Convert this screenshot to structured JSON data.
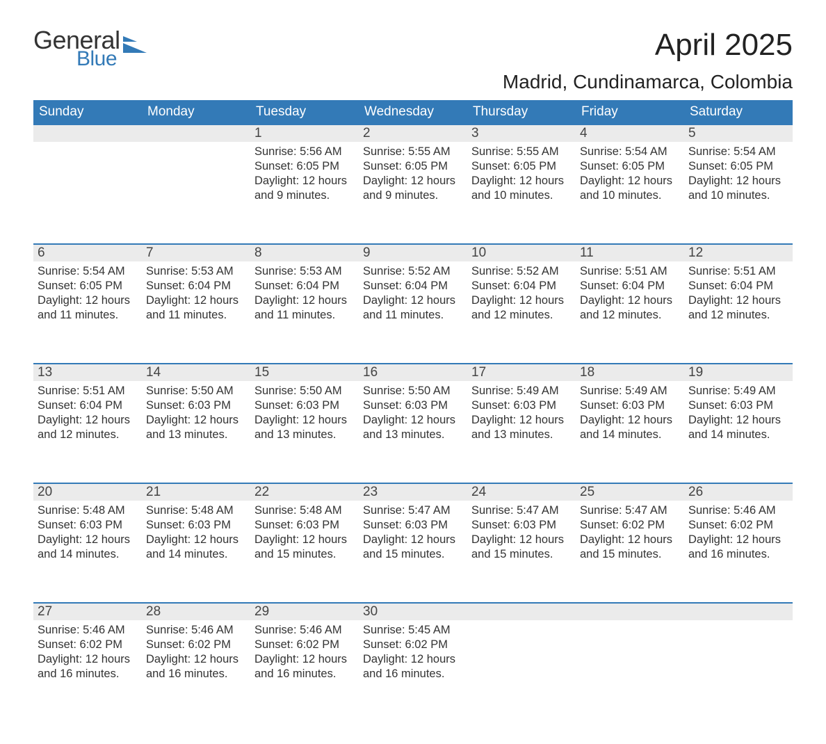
{
  "logo": {
    "word1": "General",
    "word2": "Blue"
  },
  "title": "April 2025",
  "location": "Madrid, Cundinamarca, Colombia",
  "colors": {
    "header_bg": "#337ab7",
    "header_text": "#ffffff",
    "daynum_bg": "#ebebeb",
    "daynum_border": "#337ab7",
    "page_bg": "#ffffff",
    "text": "#333333",
    "logo_accent": "#337ab7"
  },
  "fonts": {
    "family": "Segoe UI / Helvetica Neue",
    "title_size_pt": 33,
    "location_size_pt": 21,
    "header_size_pt": 14,
    "body_size_pt": 12,
    "daynum_size_pt": 14
  },
  "calendar": {
    "type": "month-grid",
    "columns": [
      "Sunday",
      "Monday",
      "Tuesday",
      "Wednesday",
      "Thursday",
      "Friday",
      "Saturday"
    ],
    "weeks": [
      [
        null,
        null,
        {
          "n": "1",
          "sr": "5:56 AM",
          "ss": "6:05 PM",
          "dl": "12 hours and 9 minutes."
        },
        {
          "n": "2",
          "sr": "5:55 AM",
          "ss": "6:05 PM",
          "dl": "12 hours and 9 minutes."
        },
        {
          "n": "3",
          "sr": "5:55 AM",
          "ss": "6:05 PM",
          "dl": "12 hours and 10 minutes."
        },
        {
          "n": "4",
          "sr": "5:54 AM",
          "ss": "6:05 PM",
          "dl": "12 hours and 10 minutes."
        },
        {
          "n": "5",
          "sr": "5:54 AM",
          "ss": "6:05 PM",
          "dl": "12 hours and 10 minutes."
        }
      ],
      [
        {
          "n": "6",
          "sr": "5:54 AM",
          "ss": "6:05 PM",
          "dl": "12 hours and 11 minutes."
        },
        {
          "n": "7",
          "sr": "5:53 AM",
          "ss": "6:04 PM",
          "dl": "12 hours and 11 minutes."
        },
        {
          "n": "8",
          "sr": "5:53 AM",
          "ss": "6:04 PM",
          "dl": "12 hours and 11 minutes."
        },
        {
          "n": "9",
          "sr": "5:52 AM",
          "ss": "6:04 PM",
          "dl": "12 hours and 11 minutes."
        },
        {
          "n": "10",
          "sr": "5:52 AM",
          "ss": "6:04 PM",
          "dl": "12 hours and 12 minutes."
        },
        {
          "n": "11",
          "sr": "5:51 AM",
          "ss": "6:04 PM",
          "dl": "12 hours and 12 minutes."
        },
        {
          "n": "12",
          "sr": "5:51 AM",
          "ss": "6:04 PM",
          "dl": "12 hours and 12 minutes."
        }
      ],
      [
        {
          "n": "13",
          "sr": "5:51 AM",
          "ss": "6:04 PM",
          "dl": "12 hours and 12 minutes."
        },
        {
          "n": "14",
          "sr": "5:50 AM",
          "ss": "6:03 PM",
          "dl": "12 hours and 13 minutes."
        },
        {
          "n": "15",
          "sr": "5:50 AM",
          "ss": "6:03 PM",
          "dl": "12 hours and 13 minutes."
        },
        {
          "n": "16",
          "sr": "5:50 AM",
          "ss": "6:03 PM",
          "dl": "12 hours and 13 minutes."
        },
        {
          "n": "17",
          "sr": "5:49 AM",
          "ss": "6:03 PM",
          "dl": "12 hours and 13 minutes."
        },
        {
          "n": "18",
          "sr": "5:49 AM",
          "ss": "6:03 PM",
          "dl": "12 hours and 14 minutes."
        },
        {
          "n": "19",
          "sr": "5:49 AM",
          "ss": "6:03 PM",
          "dl": "12 hours and 14 minutes."
        }
      ],
      [
        {
          "n": "20",
          "sr": "5:48 AM",
          "ss": "6:03 PM",
          "dl": "12 hours and 14 minutes."
        },
        {
          "n": "21",
          "sr": "5:48 AM",
          "ss": "6:03 PM",
          "dl": "12 hours and 14 minutes."
        },
        {
          "n": "22",
          "sr": "5:48 AM",
          "ss": "6:03 PM",
          "dl": "12 hours and 15 minutes."
        },
        {
          "n": "23",
          "sr": "5:47 AM",
          "ss": "6:03 PM",
          "dl": "12 hours and 15 minutes."
        },
        {
          "n": "24",
          "sr": "5:47 AM",
          "ss": "6:03 PM",
          "dl": "12 hours and 15 minutes."
        },
        {
          "n": "25",
          "sr": "5:47 AM",
          "ss": "6:02 PM",
          "dl": "12 hours and 15 minutes."
        },
        {
          "n": "26",
          "sr": "5:46 AM",
          "ss": "6:02 PM",
          "dl": "12 hours and 16 minutes."
        }
      ],
      [
        {
          "n": "27",
          "sr": "5:46 AM",
          "ss": "6:02 PM",
          "dl": "12 hours and 16 minutes."
        },
        {
          "n": "28",
          "sr": "5:46 AM",
          "ss": "6:02 PM",
          "dl": "12 hours and 16 minutes."
        },
        {
          "n": "29",
          "sr": "5:46 AM",
          "ss": "6:02 PM",
          "dl": "12 hours and 16 minutes."
        },
        {
          "n": "30",
          "sr": "5:45 AM",
          "ss": "6:02 PM",
          "dl": "12 hours and 16 minutes."
        },
        null,
        null,
        null
      ]
    ],
    "labels": {
      "sunrise": "Sunrise:",
      "sunset": "Sunset:",
      "daylight": "Daylight:"
    }
  }
}
